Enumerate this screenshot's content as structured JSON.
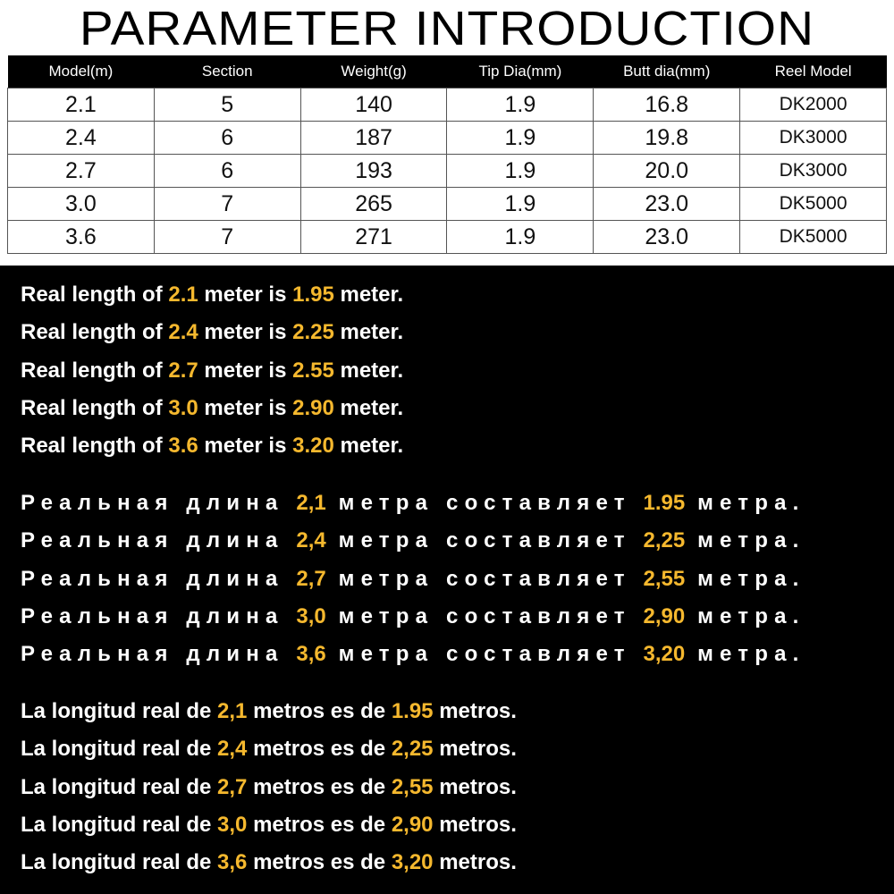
{
  "title": "PARAMETER INTRODUCTION",
  "table": {
    "headers": [
      "Model(m)",
      "Section",
      "Weight(g)",
      "Tip Dia(mm)",
      "Butt dia(mm)",
      "Reel Model"
    ],
    "rows": [
      [
        "2.1",
        "5",
        "140",
        "1.9",
        "16.8",
        "DK2000"
      ],
      [
        "2.4",
        "6",
        "187",
        "1.9",
        "19.8",
        "DK3000"
      ],
      [
        "2.7",
        "6",
        "193",
        "1.9",
        "20.0",
        "DK3000"
      ],
      [
        "3.0",
        "7",
        "265",
        "1.9",
        "23.0",
        "DK5000"
      ],
      [
        "3.6",
        "7",
        "271",
        "1.9",
        "23.0",
        "DK5000"
      ]
    ]
  },
  "colors": {
    "highlight": "#f5b82e",
    "background": "#000000",
    "text": "#ffffff"
  },
  "english": [
    {
      "a": "Real length of ",
      "v1": "2.1",
      "b": " meter is ",
      "v2": "1.95",
      "c": " meter."
    },
    {
      "a": "Real length of ",
      "v1": "2.4",
      "b": " meter is ",
      "v2": "2.25",
      "c": " meter."
    },
    {
      "a": "Real length of ",
      "v1": "2.7",
      "b": " meter is ",
      "v2": "2.55",
      "c": " meter."
    },
    {
      "a": "Real length of ",
      "v1": "3.0",
      "b": " meter is ",
      "v2": "2.90",
      "c": " meter."
    },
    {
      "a": "Real length of ",
      "v1": "3.6",
      "b": " meter is ",
      "v2": "3.20",
      "c": " meter."
    }
  ],
  "russian": [
    {
      "a": "Реальная длина ",
      "v1": "2,1",
      "b": " метра составляет ",
      "v2": "1.95",
      "c": " метра."
    },
    {
      "a": "Реальная длина ",
      "v1": "2,4",
      "b": " метра составляет ",
      "v2": "2,25",
      "c": " метра."
    },
    {
      "a": "Реальная длина ",
      "v1": "2,7",
      "b": " метра составляет ",
      "v2": "2,55",
      "c": " метра."
    },
    {
      "a": "Реальная длина ",
      "v1": "3,0",
      "b": " метра составляет ",
      "v2": "2,90",
      "c": " метра."
    },
    {
      "a": "Реальная длина ",
      "v1": "3,6",
      "b": " метра составляет ",
      "v2": "3,20",
      "c": " метра."
    }
  ],
  "spanish": [
    {
      "a": "La longitud real de ",
      "v1": "2,1",
      "b": " metros es de ",
      "v2": "1.95",
      "c": " metros."
    },
    {
      "a": "La longitud real de ",
      "v1": "2,4",
      "b": " metros es de ",
      "v2": "2,25",
      "c": " metros."
    },
    {
      "a": "La longitud real de ",
      "v1": "2,7",
      "b": " metros es de ",
      "v2": "2,55",
      "c": " metros."
    },
    {
      "a": "La longitud real de ",
      "v1": "3,0",
      "b": " metros es de ",
      "v2": "2,90",
      "c": " metros."
    },
    {
      "a": "La longitud real de ",
      "v1": "3,6",
      "b": " metros es de ",
      "v2": "3,20",
      "c": " metros."
    }
  ]
}
